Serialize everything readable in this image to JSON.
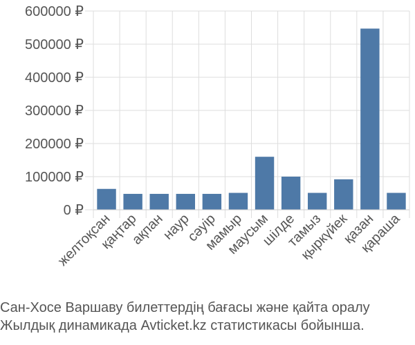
{
  "chart_data": {
    "type": "bar",
    "categories": [
      "желтоқсан",
      "қаңтар",
      "ақпан",
      "наур",
      "сәуір",
      "мамыр",
      "маусым",
      "шілде",
      "тамыз",
      "қыркүйек",
      "қазан",
      "қараша"
    ],
    "values": [
      63000,
      48000,
      48000,
      48000,
      48000,
      51000,
      160000,
      100000,
      51000,
      92000,
      547000,
      51000
    ],
    "y_ticks": [
      0,
      100000,
      200000,
      300000,
      400000,
      500000,
      600000
    ],
    "y_tick_labels": [
      "0 ₽",
      "100000 ₽",
      "200000 ₽",
      "300000 ₽",
      "400000 ₽",
      "500000 ₽",
      "600000 ₽"
    ],
    "ylim": [
      0,
      600000
    ],
    "bar_color": "#4e79a7",
    "grid": true,
    "legend": "none",
    "xlabel": "",
    "ylabel": ""
  },
  "caption": {
    "line1": "Сан-Хосе Варшаву билеттердің бағасы және қайта оралу",
    "line2": "Жылдық динамикада Avticket.kz статистикасы бойынша."
  }
}
